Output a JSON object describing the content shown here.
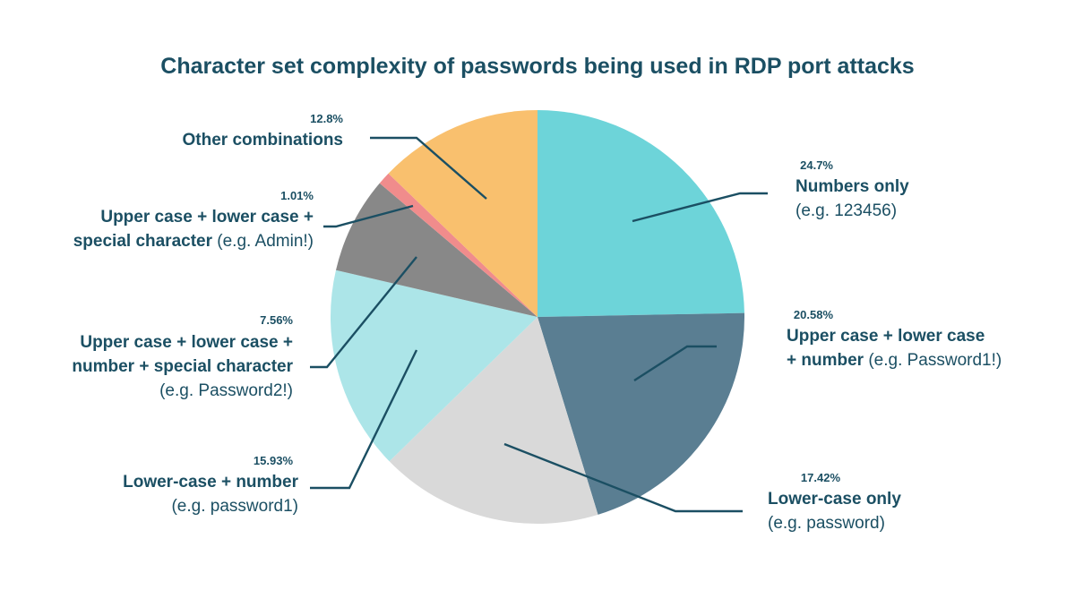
{
  "chart_data": {
    "type": "pie",
    "title": "Character set complexity of passwords being used in RDP port attacks",
    "slices": [
      {
        "value": 24.7,
        "percent_label": "24.7%",
        "label_lines": [
          [
            {
              "b": "Numbers only"
            }
          ],
          [
            {
              "t": "(e.g. 123456)"
            }
          ]
        ],
        "color": "#6dd4d9"
      },
      {
        "value": 20.58,
        "percent_label": "20.58%",
        "label_lines": [
          [
            {
              "b": "Upper case + lower case"
            }
          ],
          [
            {
              "b": "+ number "
            },
            {
              "t": "(e.g. Password1!)"
            }
          ]
        ],
        "color": "#5a7e92"
      },
      {
        "value": 17.42,
        "percent_label": "17.42%",
        "label_lines": [
          [
            {
              "b": "Lower-case only"
            }
          ],
          [
            {
              "t": "(e.g. password)"
            }
          ]
        ],
        "color": "#d9d9d9"
      },
      {
        "value": 15.93,
        "percent_label": "15.93%",
        "label_lines": [
          [
            {
              "b": "Lower-case + number"
            }
          ],
          [
            {
              "t": "(e.g. password1)"
            }
          ]
        ],
        "color": "#ace5e8"
      },
      {
        "value": 7.56,
        "percent_label": "7.56%",
        "label_lines": [
          [
            {
              "b": "Upper case + lower case +"
            }
          ],
          [
            {
              "b": "number + special character"
            }
          ],
          [
            {
              "t": "(e.g. Password2!)"
            }
          ]
        ],
        "color": "#888888"
      },
      {
        "value": 1.01,
        "percent_label": "1.01%",
        "label_lines": [
          [
            {
              "b": "Upper case + lower case +"
            }
          ],
          [
            {
              "b": "special character "
            },
            {
              "t": "(e.g. Admin!)"
            }
          ]
        ],
        "color": "#f08c8c"
      },
      {
        "value": 12.8,
        "percent_label": "12.8%",
        "label_lines": [
          [
            {
              "b": "Other combinations"
            }
          ]
        ],
        "color": "#f9c06e"
      }
    ],
    "colors": {
      "title": "#1b4f63",
      "label": "#1b4f63",
      "leader_line": "#1b4f63"
    }
  }
}
